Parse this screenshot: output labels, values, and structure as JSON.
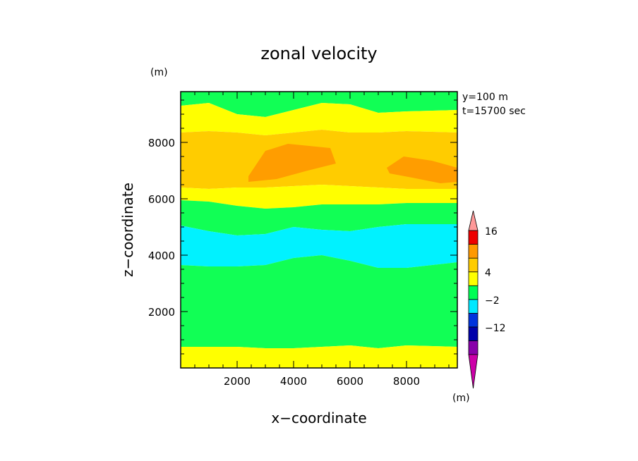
{
  "chart_data": {
    "type": "heatmap",
    "title": "zonal velocity",
    "xlabel": "x−coordinate",
    "ylabel": "z−coordinate",
    "x_unit": "(m)",
    "y_unit": "(m)",
    "xlim": [
      0,
      9800
    ],
    "ylim": [
      0,
      9800
    ],
    "x_ticks": [
      2000,
      4000,
      6000,
      8000
    ],
    "y_ticks": [
      2000,
      4000,
      6000,
      8000
    ],
    "x_tick_labels": [
      "2000",
      "4000",
      "6000",
      "8000"
    ],
    "y_tick_labels": [
      "2000",
      "4000",
      "6000",
      "8000"
    ],
    "annotations": [
      "y=100 m",
      "t=15700 sec"
    ],
    "colorbar": {
      "unit": "(m)",
      "labels": [
        "16",
        "4",
        "−2",
        "−12"
      ],
      "levels": [
        -22,
        -17,
        -12,
        -7,
        -2,
        2,
        4,
        8,
        12,
        16,
        20
      ],
      "colors": [
        "#cc00a8",
        "#8800aa",
        "#0000aa",
        "#0033dd",
        "#00e8ff",
        "#00ff55",
        "#ffff00",
        "#ffcc00",
        "#ff9900",
        "#ee0000",
        "#ff9999"
      ],
      "extend": "both"
    },
    "band_colors": {
      "cyan": "#00f2ff",
      "green": "#11ff55",
      "yellow": "#ffff00",
      "light_orange": "#ffcc00",
      "orange": "#ff9d00"
    },
    "bands": [
      {
        "name": "cyan-top",
        "color": "cyan",
        "z_bottom": [
          9600,
          9600,
          9600,
          9600,
          9600,
          9600,
          9600,
          9550,
          9500,
          9600
        ],
        "z_top": 9800
      },
      {
        "name": "green-upper",
        "color": "green",
        "z_bottom": [
          9300,
          9400,
          9000,
          8900,
          9150,
          9400,
          9350,
          9050,
          9100,
          9150
        ],
        "z_top": 9800
      },
      {
        "name": "yellow-upper",
        "color": "yellow",
        "z_bottom": [
          8350,
          8400,
          8350,
          8250,
          8350,
          8450,
          8350,
          8350,
          8400,
          8350
        ],
        "z_top": [
          9300,
          9400,
          9000,
          8900,
          9150,
          9400,
          9350,
          9050,
          9100,
          9150
        ]
      },
      {
        "name": "light-orange",
        "color": "light_orange",
        "z_bottom": [
          6400,
          6350,
          6400,
          6400,
          6450,
          6500,
          6450,
          6400,
          6350,
          6350
        ],
        "z_top": [
          8350,
          8400,
          8350,
          8250,
          8350,
          8450,
          8350,
          8350,
          8400,
          8350
        ]
      },
      {
        "name": "yellow-mid",
        "color": "yellow",
        "z_bottom": [
          5950,
          5900,
          5750,
          5650,
          5700,
          5800,
          5800,
          5800,
          5850,
          5850
        ],
        "z_top": [
          6400,
          6350,
          6400,
          6400,
          6450,
          6500,
          6450,
          6400,
          6350,
          6350
        ]
      },
      {
        "name": "green-mid",
        "color": "green",
        "z_bottom": [
          5050,
          4850,
          4700,
          4750,
          5000,
          4900,
          4850,
          5000,
          5100,
          5100
        ],
        "z_top": [
          5950,
          5900,
          5750,
          5650,
          5700,
          5800,
          5800,
          5800,
          5850,
          5850
        ]
      },
      {
        "name": "cyan-mid",
        "color": "cyan",
        "z_bottom": [
          3650,
          3600,
          3600,
          3650,
          3900,
          4000,
          3800,
          3550,
          3550,
          3750
        ],
        "z_top": [
          5050,
          4850,
          4700,
          4750,
          5000,
          4900,
          4850,
          5000,
          5100,
          5100
        ]
      },
      {
        "name": "green-lower",
        "color": "green",
        "z_bottom": [
          750,
          750,
          750,
          700,
          700,
          750,
          800,
          700,
          800,
          750
        ],
        "z_top": [
          3650,
          3600,
          3600,
          3650,
          3900,
          4000,
          3800,
          3550,
          3550,
          3750
        ]
      },
      {
        "name": "yellow-bottom",
        "color": "yellow",
        "z_bottom": 0,
        "z_top": [
          750,
          750,
          750,
          700,
          700,
          750,
          800,
          700,
          800,
          750
        ]
      }
    ],
    "band_x": [
      0,
      1000,
      2000,
      3000,
      4000,
      5000,
      6000,
      7000,
      8000,
      9800
    ],
    "blobs": [
      {
        "name": "orange-center",
        "color": "orange",
        "points": [
          [
            2400,
            6800
          ],
          [
            3000,
            7700
          ],
          [
            3800,
            7950
          ],
          [
            5300,
            7800
          ],
          [
            5500,
            7250
          ],
          [
            4500,
            7000
          ],
          [
            3400,
            6700
          ],
          [
            2400,
            6600
          ]
        ]
      },
      {
        "name": "orange-right",
        "color": "orange",
        "points": [
          [
            7300,
            7100
          ],
          [
            7900,
            7500
          ],
          [
            8900,
            7350
          ],
          [
            9800,
            7100
          ],
          [
            9800,
            6600
          ],
          [
            9200,
            6550
          ],
          [
            8200,
            6750
          ],
          [
            7400,
            6900
          ]
        ]
      }
    ]
  }
}
